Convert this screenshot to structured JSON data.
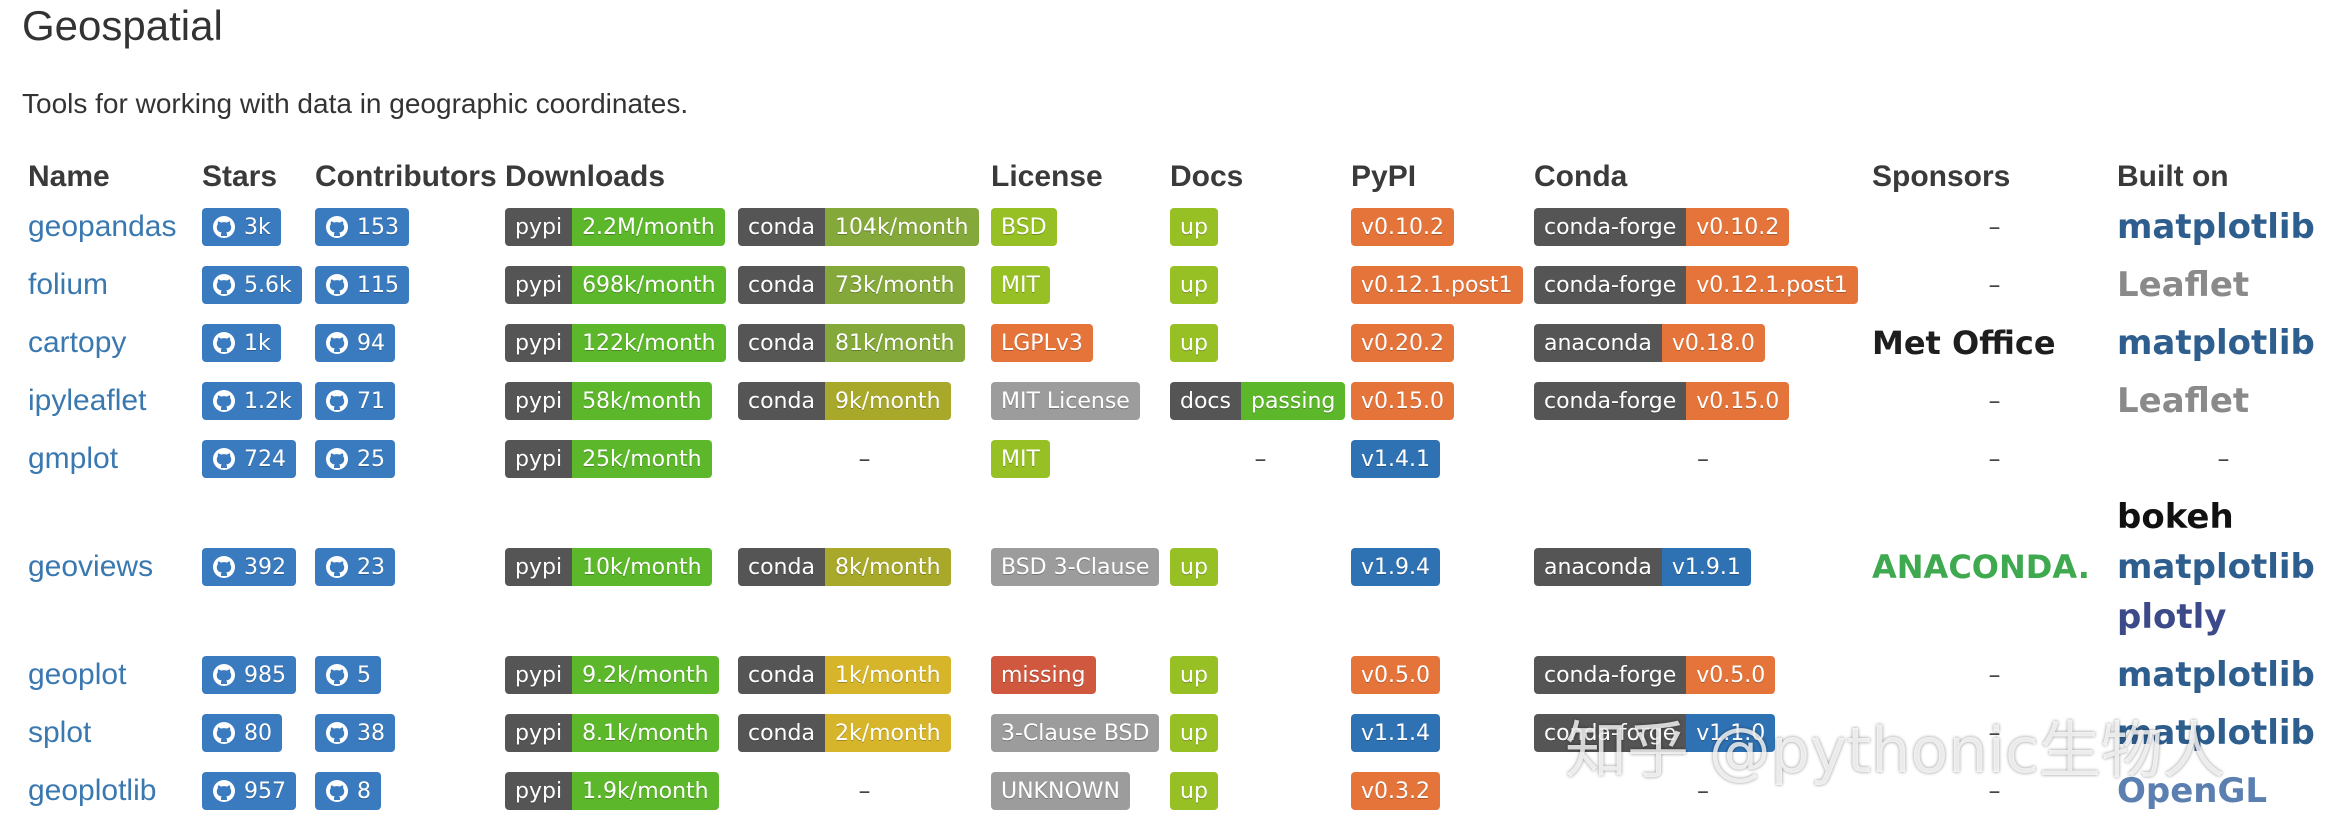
{
  "header": {
    "title": "Geospatial",
    "description": "Tools for working with data in geographic coordinates."
  },
  "watermark": "知乎 @pythonic生物人",
  "table": {
    "columns": [
      "Name",
      "Stars",
      "Contributors",
      "Downloads",
      "License",
      "Docs",
      "PyPI",
      "Conda",
      "Sponsors",
      "Built on"
    ],
    "github_color": "#3a7bbf",
    "rows": [
      {
        "name": "geopandas",
        "stars": "3k",
        "contributors": "153",
        "downloads": [
          {
            "label": "pypi",
            "value": "2.2M/month",
            "color": "#5cb82a"
          },
          {
            "label": "conda",
            "value": "104k/month",
            "color": "#85a83a"
          }
        ],
        "license": {
          "value": "BSD",
          "color": "#97c024"
        },
        "docs": {
          "value": "up",
          "color": "#97c024"
        },
        "pypi": {
          "value": "v0.10.2",
          "color": "#e5743b"
        },
        "conda": {
          "label": "conda-forge",
          "value": "v0.10.2",
          "color": "#e5743b"
        },
        "sponsors": "–",
        "built_on": [
          {
            "text": "matplotlib",
            "color": "#2e5e8e"
          }
        ]
      },
      {
        "name": "folium",
        "stars": "5.6k",
        "contributors": "115",
        "downloads": [
          {
            "label": "pypi",
            "value": "698k/month",
            "color": "#5cb82a"
          },
          {
            "label": "conda",
            "value": "73k/month",
            "color": "#85a83a"
          }
        ],
        "license": {
          "value": "MIT",
          "color": "#97c024"
        },
        "docs": {
          "value": "up",
          "color": "#97c024"
        },
        "pypi": {
          "value": "v0.12.1.post1",
          "color": "#e5743b"
        },
        "conda": {
          "label": "conda-forge",
          "value": "v0.12.1.post1",
          "color": "#e5743b"
        },
        "sponsors": "–",
        "built_on": [
          {
            "text": "Leaflet",
            "color": "#8a8a8a"
          }
        ]
      },
      {
        "name": "cartopy",
        "stars": "1k",
        "contributors": "94",
        "downloads": [
          {
            "label": "pypi",
            "value": "122k/month",
            "color": "#5cb82a"
          },
          {
            "label": "conda",
            "value": "81k/month",
            "color": "#85a83a"
          }
        ],
        "license": {
          "value": "LGPLv3",
          "color": "#e5743b"
        },
        "docs": {
          "value": "up",
          "color": "#97c024"
        },
        "pypi": {
          "value": "v0.20.2",
          "color": "#e5743b"
        },
        "conda": {
          "label": "anaconda",
          "value": "v0.18.0",
          "color": "#e5743b"
        },
        "sponsors": [
          {
            "text": "Met Office",
            "color": "#1e1e1e"
          }
        ],
        "built_on": [
          {
            "text": "matplotlib",
            "color": "#2e5e8e"
          }
        ]
      },
      {
        "name": "ipyleaflet",
        "stars": "1.2k",
        "contributors": "71",
        "downloads": [
          {
            "label": "pypi",
            "value": "58k/month",
            "color": "#5cb82a"
          },
          {
            "label": "conda",
            "value": "9k/month",
            "color": "#a8a82a"
          }
        ],
        "license": {
          "value": "MIT License",
          "color": "#9c9c9c"
        },
        "docs": {
          "label": "docs",
          "value": "passing",
          "color": "#5cb82a"
        },
        "pypi": {
          "value": "v0.15.0",
          "color": "#e5743b"
        },
        "conda": {
          "label": "conda-forge",
          "value": "v0.15.0",
          "color": "#e5743b"
        },
        "sponsors": "–",
        "built_on": [
          {
            "text": "Leaflet",
            "color": "#8a8a8a"
          }
        ]
      },
      {
        "name": "gmplot",
        "stars": "724",
        "contributors": "25",
        "downloads": [
          {
            "label": "pypi",
            "value": "25k/month",
            "color": "#5cb82a"
          },
          "–"
        ],
        "license": {
          "value": "MIT",
          "color": "#97c024"
        },
        "docs": "–",
        "pypi": {
          "value": "v1.4.1",
          "color": "#2f72b4"
        },
        "conda": "–",
        "sponsors": "–",
        "built_on": "–"
      },
      {
        "name": "geoviews",
        "stars": "392",
        "contributors": "23",
        "downloads": [
          {
            "label": "pypi",
            "value": "10k/month",
            "color": "#5cb82a"
          },
          {
            "label": "conda",
            "value": "8k/month",
            "color": "#a8a82a"
          }
        ],
        "license": {
          "value": "BSD 3-Clause",
          "color": "#9c9c9c"
        },
        "docs": {
          "value": "up",
          "color": "#97c024"
        },
        "pypi": {
          "value": "v1.9.4",
          "color": "#2f72b4"
        },
        "conda": {
          "label": "anaconda",
          "value": "v1.9.1",
          "color": "#2f72b4"
        },
        "sponsors": [
          {
            "text": "ANACONDA.",
            "color": "#3fa950"
          }
        ],
        "built_on": [
          {
            "text": "bokeh",
            "color": "#111"
          },
          {
            "text": "matplotlib",
            "color": "#2e5e8e"
          },
          {
            "text": "plotly",
            "color": "#3d4a8a"
          }
        ]
      },
      {
        "name": "geoplot",
        "stars": "985",
        "contributors": "5",
        "downloads": [
          {
            "label": "pypi",
            "value": "9.2k/month",
            "color": "#5cb82a"
          },
          {
            "label": "conda",
            "value": "1k/month",
            "color": "#d6b52a"
          }
        ],
        "license": {
          "value": "missing",
          "color": "#d0583f"
        },
        "docs": {
          "value": "up",
          "color": "#97c024"
        },
        "pypi": {
          "value": "v0.5.0",
          "color": "#e5743b"
        },
        "conda": {
          "label": "conda-forge",
          "value": "v0.5.0",
          "color": "#e5743b"
        },
        "sponsors": "–",
        "built_on": [
          {
            "text": "matplotlib",
            "color": "#2e5e8e"
          }
        ]
      },
      {
        "name": "splot",
        "stars": "80",
        "contributors": "38",
        "downloads": [
          {
            "label": "pypi",
            "value": "8.1k/month",
            "color": "#5cb82a"
          },
          {
            "label": "conda",
            "value": "2k/month",
            "color": "#d6b52a"
          }
        ],
        "license": {
          "value": "3-Clause BSD",
          "color": "#9c9c9c"
        },
        "docs": {
          "value": "up",
          "color": "#97c024"
        },
        "pypi": {
          "value": "v1.1.4",
          "color": "#2f72b4"
        },
        "conda": {
          "label": "conda-forge",
          "value": "v1.1.0",
          "color": "#2f72b4"
        },
        "sponsors": "–",
        "built_on": [
          {
            "text": "matplotlib",
            "color": "#2e5e8e"
          }
        ]
      },
      {
        "name": "geoplotlib",
        "stars": "957",
        "contributors": "8",
        "downloads": [
          {
            "label": "pypi",
            "value": "1.9k/month",
            "color": "#5cb82a"
          },
          "–"
        ],
        "license": {
          "value": "UNKNOWN",
          "color": "#9c9c9c"
        },
        "docs": {
          "value": "up",
          "color": "#97c024"
        },
        "pypi": {
          "value": "v0.3.2",
          "color": "#e5743b"
        },
        "conda": "–",
        "sponsors": "–",
        "built_on": [
          {
            "text": "OpenGL",
            "color": "#5a7fb0"
          }
        ]
      }
    ]
  }
}
